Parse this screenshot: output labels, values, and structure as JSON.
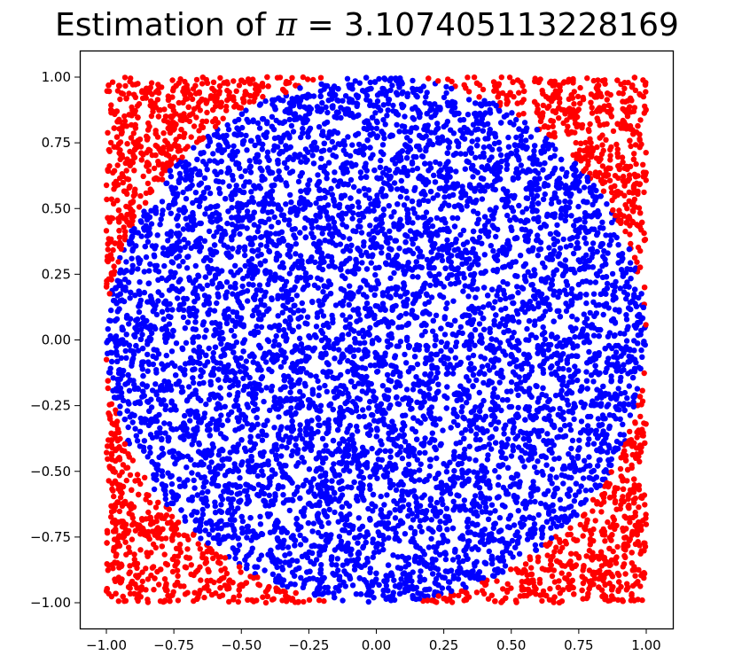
{
  "chart_data": {
    "type": "scatter",
    "title_prefix": "Estimation of ",
    "title_symbol": "π",
    "title_suffix": " = 3.107405113228169",
    "pi_estimate": 3.107405113228169,
    "xlim": [
      -1.1,
      1.1
    ],
    "ylim": [
      -1.1,
      1.1
    ],
    "x_ticks": [
      -1.0,
      -0.75,
      -0.5,
      -0.25,
      0.0,
      0.25,
      0.5,
      0.75,
      1.0
    ],
    "y_ticks": [
      -1.0,
      -0.75,
      -0.5,
      -0.25,
      0.0,
      0.25,
      0.5,
      0.75,
      1.0
    ],
    "x_tick_labels": [
      "−1.00",
      "−0.75",
      "−0.50",
      "−0.25",
      "0.00",
      "0.25",
      "0.50",
      "0.75",
      "1.00"
    ],
    "y_tick_labels": [
      "1.00",
      "0.75",
      "0.50",
      "0.25",
      "0.00",
      "−0.25",
      "−0.50",
      "−0.75",
      "−1.00"
    ],
    "grid": false,
    "legend": "none",
    "series": [
      {
        "color": "#0000ff",
        "region": "inside unit circle (x² + y² ≤ 1)"
      },
      {
        "color": "#ff0000",
        "region": "outside unit circle, inside square [−1, 1] × [−1, 1]"
      }
    ],
    "sample_points_approx": 10000
  }
}
